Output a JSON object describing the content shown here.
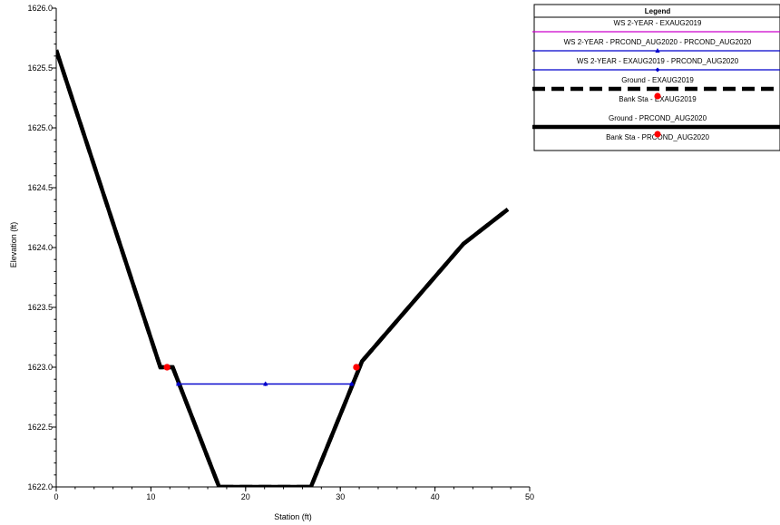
{
  "chart_data": {
    "type": "line",
    "xlabel": "Station (ft)",
    "ylabel": "Elevation (ft)",
    "xlim": [
      0,
      50
    ],
    "ylim": [
      1622.0,
      1626.0
    ],
    "x_ticks": [
      "0",
      "10",
      "20",
      "30",
      "40",
      "50"
    ],
    "y_ticks": [
      "1622.0",
      "1622.5",
      "1623.0",
      "1623.5",
      "1624.0",
      "1624.5",
      "1625.0",
      "1625.5",
      "1626.0"
    ],
    "grid": false,
    "legend_position": "top-right",
    "legend_title": "Legend",
    "series": [
      {
        "name": "WS 2-YEAR - EXAUG2019",
        "style": "solid-thin",
        "color": "#cc00cc",
        "x": [],
        "y": []
      },
      {
        "name": "WS 2-YEAR - PRCOND_AUG2020 - PRCOND_AUG2020",
        "style": "solid-thin",
        "color": "#0000cc",
        "marker": "triangle",
        "x": [
          12.9,
          22.1,
          31.2
        ],
        "y": [
          1622.86,
          1622.86,
          1622.86
        ]
      },
      {
        "name": "WS 2-YEAR - EXAUG2019 - PRCOND_AUG2020",
        "style": "solid-thin",
        "color": "#0000cc",
        "marker": "diamond",
        "x": [
          12.9,
          22.1,
          31.2
        ],
        "y": [
          1622.86,
          1622.86,
          1622.86
        ]
      },
      {
        "name": "Ground - EXAUG2019",
        "style": "dashed-thick",
        "color": "#000000",
        "x": [
          0.0,
          11.0,
          12.3,
          17.2,
          26.9,
          32.3,
          43.0,
          47.7
        ],
        "y": [
          1625.65,
          1623.0,
          1623.0,
          1622.0,
          1622.0,
          1623.05,
          1624.03,
          1624.32
        ]
      },
      {
        "name": "Bank Sta - EXAUG2019",
        "style": "marker",
        "color": "#ff0000",
        "marker": "circle",
        "x": [
          11.7,
          31.7
        ],
        "y": [
          1623.0,
          1623.0
        ]
      },
      {
        "name": "Ground - PRCOND_AUG2020",
        "style": "solid-thick",
        "color": "#000000",
        "x": [
          0.0,
          11.0,
          12.3,
          17.2,
          26.9,
          32.3,
          43.0,
          47.7
        ],
        "y": [
          1625.65,
          1623.0,
          1623.0,
          1622.0,
          1622.0,
          1623.05,
          1624.03,
          1624.32
        ]
      },
      {
        "name": "Bank Sta - PRCOND_AUG2020",
        "style": "marker",
        "color": "#ff0000",
        "marker": "circle",
        "x": [
          11.7,
          31.7
        ],
        "y": [
          1623.0,
          1623.0
        ]
      }
    ]
  }
}
